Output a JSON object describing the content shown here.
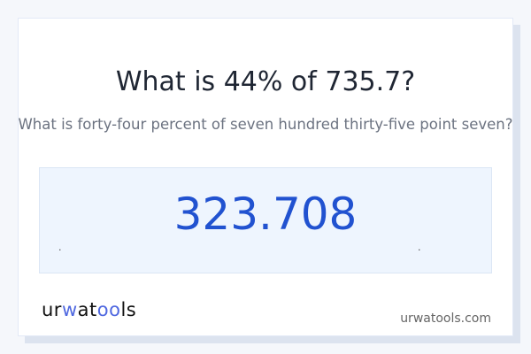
{
  "question": {
    "title": "What is 44% of 735.7?",
    "subtitle": "What is forty-four percent of seven hundred thirty-five point seven?"
  },
  "result": {
    "value": "323.708",
    "left_mark": ".",
    "right_mark": "."
  },
  "footer": {
    "logo_text": "urwatools",
    "logo_parts": [
      "ur",
      "w",
      "at",
      "oo",
      "ls"
    ],
    "site": "urwatools.com"
  },
  "colors": {
    "accent": "#2152d0",
    "logo_accent": "#4f68e0",
    "result_bg": "#eef5fe",
    "page_bg": "#f5f7fb"
  }
}
